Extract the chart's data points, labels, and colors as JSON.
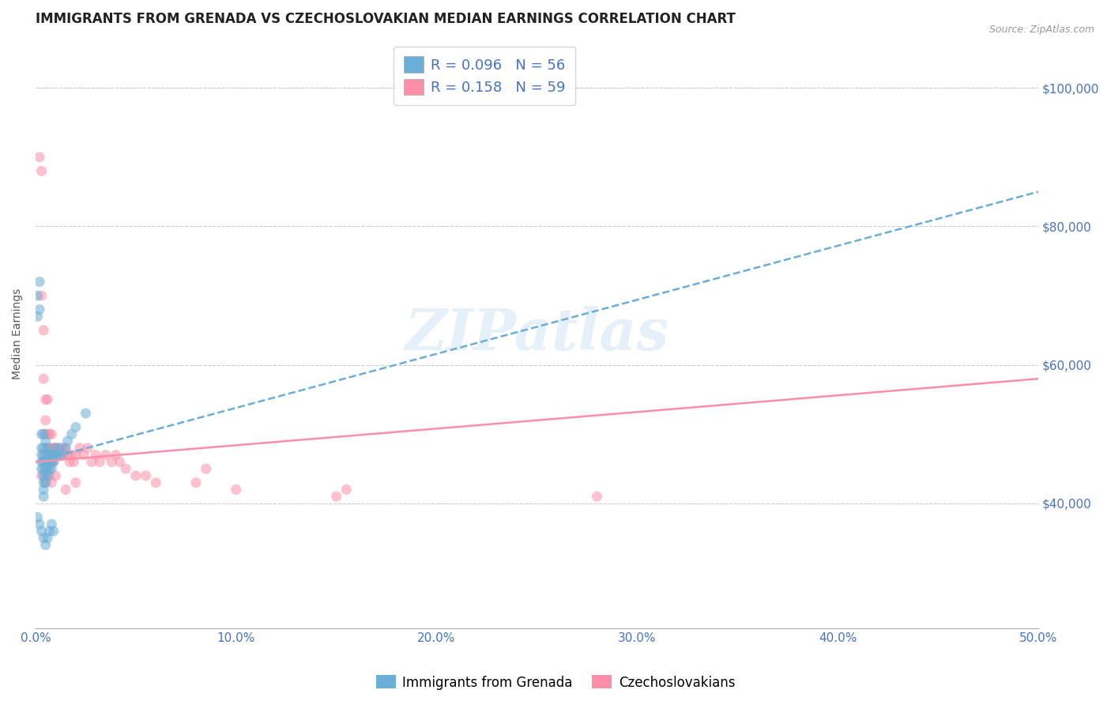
{
  "title": "IMMIGRANTS FROM GRENADA VS CZECHOSLOVAKIAN MEDIAN EARNINGS CORRELATION CHART",
  "source_text": "Source: ZipAtlas.com",
  "ylabel": "Median Earnings",
  "xlim": [
    0.0,
    0.5
  ],
  "ylim": [
    22000,
    107000
  ],
  "yticks": [
    40000,
    60000,
    80000,
    100000
  ],
  "ytick_labels": [
    "$40,000",
    "$60,000",
    "$80,000",
    "$100,000"
  ],
  "xticks": [
    0.0,
    0.1,
    0.2,
    0.3,
    0.4,
    0.5
  ],
  "xtick_labels": [
    "0.0%",
    "10.0%",
    "20.0%",
    "30.0%",
    "40.0%",
    "50.0%"
  ],
  "legend_r1": "R = 0.096",
  "legend_n1": "N = 56",
  "legend_r2": "R = 0.158",
  "legend_n2": "N = 59",
  "blue_color": "#6baed6",
  "pink_color": "#fc8fa8",
  "title_color": "#222222",
  "axis_label_color": "#555555",
  "tick_color": "#4472c4",
  "blue_line": {
    "x0": 0.0,
    "x1": 0.5,
    "y0": 46000,
    "y1": 85000
  },
  "pink_line": {
    "x0": 0.0,
    "x1": 0.5,
    "y0": 46000,
    "y1": 58000
  },
  "scatter_blue_x": [
    0.001,
    0.001,
    0.002,
    0.002,
    0.003,
    0.003,
    0.003,
    0.003,
    0.003,
    0.004,
    0.004,
    0.004,
    0.004,
    0.004,
    0.004,
    0.004,
    0.004,
    0.004,
    0.005,
    0.005,
    0.005,
    0.005,
    0.005,
    0.005,
    0.006,
    0.006,
    0.006,
    0.006,
    0.006,
    0.007,
    0.007,
    0.007,
    0.008,
    0.008,
    0.008,
    0.009,
    0.009,
    0.01,
    0.01,
    0.011,
    0.012,
    0.013,
    0.015,
    0.016,
    0.018,
    0.02,
    0.025,
    0.001,
    0.002,
    0.003,
    0.004,
    0.005,
    0.006,
    0.007,
    0.008,
    0.009
  ],
  "scatter_blue_y": [
    70000,
    67000,
    72000,
    68000,
    50000,
    48000,
    47000,
    46000,
    45000,
    50000,
    48000,
    47000,
    46000,
    45000,
    44000,
    43000,
    42000,
    41000,
    49000,
    47000,
    46000,
    45000,
    44000,
    43000,
    48000,
    47000,
    46000,
    45000,
    44000,
    47000,
    46000,
    45000,
    47000,
    46000,
    45000,
    47000,
    46000,
    48000,
    47000,
    47000,
    48000,
    47000,
    48000,
    49000,
    50000,
    51000,
    53000,
    38000,
    37000,
    36000,
    35000,
    34000,
    35000,
    36000,
    37000,
    36000
  ],
  "scatter_pink_x": [
    0.002,
    0.003,
    0.003,
    0.004,
    0.004,
    0.005,
    0.005,
    0.005,
    0.006,
    0.006,
    0.006,
    0.007,
    0.007,
    0.007,
    0.008,
    0.008,
    0.008,
    0.008,
    0.009,
    0.009,
    0.01,
    0.01,
    0.011,
    0.012,
    0.013,
    0.014,
    0.015,
    0.016,
    0.017,
    0.018,
    0.019,
    0.02,
    0.022,
    0.024,
    0.026,
    0.028,
    0.03,
    0.032,
    0.035,
    0.038,
    0.04,
    0.042,
    0.045,
    0.05,
    0.055,
    0.06,
    0.08,
    0.085,
    0.1,
    0.15,
    0.155,
    0.28,
    0.003,
    0.005,
    0.007,
    0.008,
    0.01,
    0.015,
    0.02
  ],
  "scatter_pink_y": [
    90000,
    88000,
    70000,
    65000,
    58000,
    55000,
    52000,
    50000,
    55000,
    50000,
    48000,
    50000,
    48000,
    46000,
    50000,
    48000,
    47000,
    46000,
    48000,
    46000,
    48000,
    47000,
    48000,
    47000,
    48000,
    47000,
    48000,
    47000,
    46000,
    47000,
    46000,
    47000,
    48000,
    47000,
    48000,
    46000,
    47000,
    46000,
    47000,
    46000,
    47000,
    46000,
    45000,
    44000,
    44000,
    43000,
    43000,
    45000,
    42000,
    41000,
    42000,
    41000,
    44000,
    43000,
    44000,
    43000,
    44000,
    42000,
    43000
  ]
}
